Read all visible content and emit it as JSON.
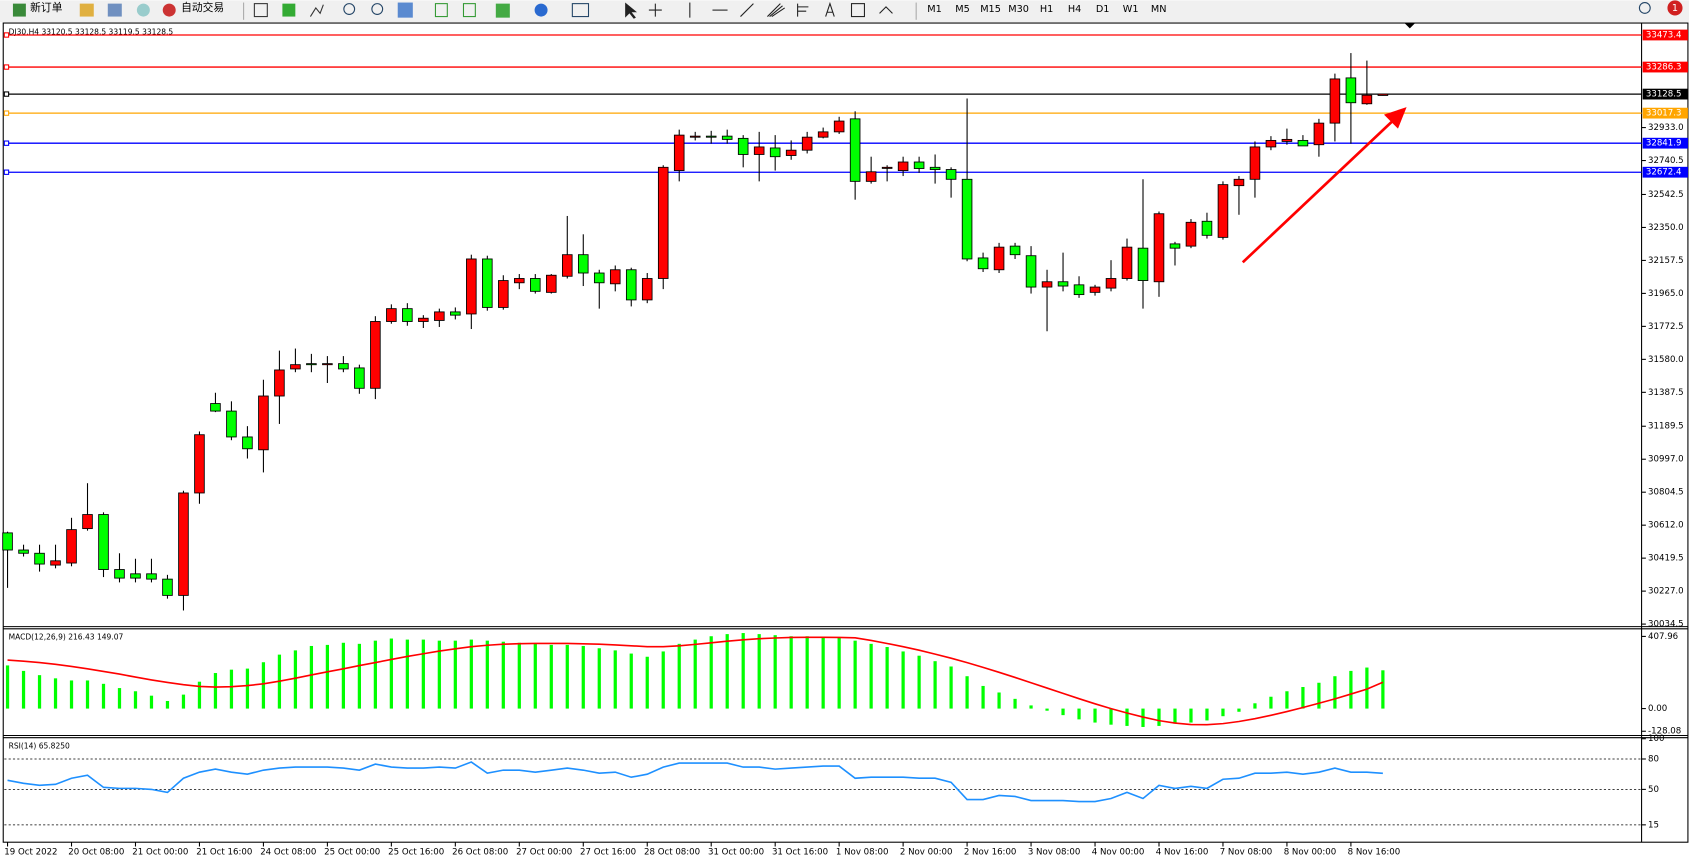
{
  "toolbar": {
    "buttons": [
      "新订单",
      "自动交易"
    ],
    "timeframes": [
      "M1",
      "M5",
      "M15",
      "M30",
      "H1",
      "H4",
      "D1",
      "W1",
      "MN"
    ],
    "badge": "1"
  },
  "chart_data": [
    {
      "type": "candlestick",
      "title": "DJ30,H4  33120.5 33128.5 33119.5 33128.5",
      "categories": [
        "19 Oct 2022",
        null,
        null,
        null,
        "20 Oct 08:00",
        null,
        null,
        null,
        "21 Oct 00:00",
        null,
        null,
        null,
        "21 Oct 16:00",
        null,
        null,
        null,
        "24 Oct 08:00",
        null,
        null,
        null,
        "25 Oct 00:00",
        null,
        null,
        null,
        "25 Oct 16:00",
        null,
        null,
        null,
        "26 Oct 08:00",
        null,
        null,
        null,
        "27 Oct 00:00",
        null,
        null,
        null,
        "27 Oct 16:00",
        null,
        null,
        null,
        "28 Oct 08:00",
        null,
        null,
        null,
        "31 Oct 00:00",
        null,
        null,
        null,
        "31 Oct 16:00",
        null,
        null,
        null,
        "1 Nov 08:00",
        null,
        null,
        null,
        "2 Nov 00:00",
        null,
        null,
        null,
        "2 Nov 16:00",
        null,
        null,
        null,
        "3 Nov 08:00",
        null,
        null,
        null,
        "4 Nov 00:00",
        null,
        null,
        null,
        "4 Nov 16:00",
        null,
        null,
        null,
        "7 Nov 08:00",
        null,
        null,
        null,
        "8 Nov 00:00",
        null,
        null,
        null,
        "8 Nov 16:00",
        null,
        null
      ],
      "open": [
        30567,
        30467,
        30448,
        30379,
        30391,
        30592,
        30674,
        30353,
        30328,
        30328,
        30297,
        30202,
        30800,
        31322,
        31278,
        31127,
        31052,
        31366,
        31524,
        31555,
        31555,
        31555,
        31530,
        31411,
        31801,
        31876,
        31801,
        31807,
        31857,
        31845,
        32166,
        31883,
        32027,
        32052,
        31971,
        32065,
        32191,
        32084,
        32021,
        32103,
        31927,
        32052,
        32682,
        32883,
        32883,
        32883,
        32870,
        32776,
        32814,
        32770,
        32801,
        32877,
        32908,
        32984,
        32619,
        32701,
        32682,
        32732,
        32701,
        32688,
        32631,
        32172,
        32103,
        32241,
        32185,
        32002,
        32033,
        32015,
        31971,
        31996,
        32052,
        32229,
        32033,
        32254,
        32241,
        32386,
        32292,
        32594,
        32631,
        32820,
        32852,
        32858,
        32833,
        32959,
        33223,
        33072,
        33120.5
      ],
      "high": [
        30574,
        30498,
        30498,
        30498,
        30655,
        30857,
        30687,
        30448,
        30416,
        30416,
        30322,
        30813,
        31159,
        31385,
        31335,
        31190,
        31461,
        31631,
        31643,
        31612,
        31599,
        31599,
        31549,
        31832,
        31901,
        31908,
        31838,
        31876,
        31883,
        32191,
        32185,
        32071,
        32078,
        32078,
        32078,
        32417,
        32310,
        32103,
        32128,
        32115,
        32084,
        32713,
        32921,
        32908,
        32914,
        32921,
        32889,
        32908,
        32889,
        32858,
        32908,
        32933,
        32996,
        33028,
        32763,
        32713,
        32763,
        32763,
        32776,
        32701,
        33103,
        32203,
        32260,
        32260,
        32241,
        32103,
        32203,
        32065,
        32015,
        32159,
        32285,
        32631,
        32443,
        32266,
        32399,
        32436,
        32619,
        32650,
        32852,
        32883,
        32927,
        32889,
        32984,
        33248,
        33368,
        33324,
        33128.5
      ],
      "low": [
        30246,
        30429,
        30341,
        30360,
        30372,
        30580,
        30309,
        30278,
        30278,
        30278,
        30183,
        30114,
        30737,
        31272,
        31108,
        31001,
        30920,
        31203,
        31505,
        31505,
        31442,
        31505,
        31379,
        31348,
        31788,
        31776,
        31763,
        31769,
        31813,
        31757,
        31864,
        31870,
        31990,
        31964,
        31964,
        32052,
        32008,
        31876,
        31977,
        31889,
        31908,
        31990,
        32619,
        32858,
        32839,
        32839,
        32701,
        32619,
        32682,
        32745,
        32782,
        32870,
        32896,
        32512,
        32606,
        32619,
        32650,
        32669,
        32606,
        32524,
        32153,
        32090,
        32084,
        32166,
        31964,
        31744,
        31977,
        31939,
        31952,
        31977,
        32040,
        31876,
        31945,
        32128,
        32229,
        32285,
        32279,
        32424,
        32524,
        32801,
        32833,
        32826,
        32763,
        32852,
        32839,
        33066,
        33119.5
      ],
      "close": [
        30467,
        30448,
        30385,
        30404,
        30586,
        30674,
        30353,
        30303,
        30303,
        30297,
        30202,
        30800,
        31140,
        31278,
        31127,
        31058,
        31366,
        31518,
        31549,
        31549,
        31555,
        31524,
        31411,
        31801,
        31876,
        31801,
        31820,
        31857,
        31838,
        32166,
        31883,
        32040,
        32052,
        31977,
        32071,
        32191,
        32084,
        32027,
        32103,
        31927,
        32052,
        32701,
        32889,
        32883,
        32877,
        32864,
        32776,
        32820,
        32763,
        32801,
        32877,
        32908,
        32971,
        32619,
        32675,
        32701,
        32732,
        32694,
        32688,
        32631,
        32166,
        32109,
        32235,
        32191,
        32002,
        32033,
        32008,
        31958,
        32002,
        32052,
        32235,
        32040,
        32430,
        32229,
        32380,
        32304,
        32600,
        32631,
        32820,
        32858,
        32864,
        32826,
        32959,
        33217,
        33078,
        33122,
        33128.5
      ],
      "up_color": "#ff0000",
      "down_color": "#00ff00",
      "levels": [
        {
          "value": 33473.4,
          "color": "#ff0000"
        },
        {
          "value": 33286.3,
          "color": "#ff0000"
        },
        {
          "value": 33128.5,
          "color": "#000000"
        },
        {
          "value": 33017.3,
          "color": "#ffa500"
        },
        {
          "value": 32841.9,
          "color": "#0000ff"
        },
        {
          "value": 32672.4,
          "color": "#0000ff"
        }
      ],
      "ylim": [
        30026,
        33537
      ],
      "yticks": [
        {
          "value": 32933,
          "label": "32933.0"
        },
        32740.5,
        32542.5,
        {
          "value": 32350,
          "label": "32350.0"
        },
        32157.5,
        {
          "value": 31965,
          "label": "31965.0"
        },
        31772.5,
        {
          "value": 31580,
          "label": "31580.0"
        },
        31387.5,
        31189.5,
        {
          "value": 30997,
          "label": "30997.0"
        },
        30804.5,
        {
          "value": 30612,
          "label": "30612.0"
        },
        30419.5,
        {
          "value": 30227,
          "label": "30227.0"
        },
        30034.5
      ]
    },
    {
      "type": "macd",
      "title": "MACD(12,26,9) 216.43 149.07",
      "histogram": {
        "color": "#00ff00",
        "values": [
          244,
          213,
          189,
          171,
          159,
          159,
          140,
          116,
          98,
          73,
          43,
          79,
          152,
          201,
          220,
          226,
          262,
          305,
          329,
          354,
          360,
          372,
          366,
          384,
          396,
          390,
          390,
          384,
          384,
          390,
          384,
          378,
          372,
          366,
          360,
          360,
          354,
          341,
          329,
          311,
          293,
          323,
          366,
          390,
          409,
          421,
          427,
          421,
          415,
          409,
          409,
          402,
          402,
          384,
          366,
          348,
          323,
          299,
          268,
          238,
          183,
          128,
          91,
          55,
          18,
          -12,
          -37,
          -61,
          -79,
          -91,
          -98,
          -104,
          -98,
          -85,
          -79,
          -67,
          -43,
          -18,
          30,
          67,
          98,
          122,
          146,
          183,
          213,
          232,
          216.43
        ]
      },
      "signal": {
        "color": "#ff0000",
        "values": [
          274,
          268,
          260,
          250,
          238,
          225,
          210,
          195,
          178,
          162,
          148,
          135,
          125,
          122,
          124,
          130,
          140,
          155,
          172,
          190,
          208,
          225,
          243,
          260,
          278,
          295,
          310,
          325,
          338,
          350,
          358,
          364,
          367,
          368,
          368,
          368,
          366,
          364,
          360,
          355,
          350,
          350,
          355,
          363,
          372,
          381,
          389,
          395,
          399,
          402,
          403,
          403,
          402,
          400,
          385,
          368,
          350,
          330,
          308,
          285,
          260,
          233,
          205,
          176,
          146,
          116,
          86,
          56,
          27,
          0,
          -25,
          -48,
          -68,
          -82,
          -90,
          -91,
          -85,
          -73,
          -57,
          -38,
          -17,
          6,
          30,
          55,
          82,
          110,
          149.07
        ]
      },
      "ylim": [
        -146,
        445
      ],
      "yticks": [
        407.96,
        {
          "value": 0,
          "label": "0.00"
        },
        -128.08
      ]
    },
    {
      "type": "line",
      "title": "RSI(14) 65.8250",
      "color": "#1e90ff",
      "values": [
        59,
        56,
        54,
        55,
        61,
        64,
        52,
        51,
        51,
        50,
        47,
        61,
        67,
        70,
        67,
        65,
        69,
        71,
        72,
        72,
        72,
        71,
        69,
        75,
        72,
        71,
        71,
        72,
        71,
        77,
        66,
        69,
        69,
        67,
        69,
        71,
        69,
        66,
        67,
        62,
        65,
        72,
        76,
        76,
        76,
        76,
        72,
        72,
        70,
        71,
        72,
        73,
        73,
        61,
        62,
        62,
        62,
        61,
        61,
        57,
        40,
        40,
        44,
        43,
        39,
        39,
        39,
        38,
        38,
        41,
        47,
        41,
        54,
        51,
        53,
        51,
        60,
        61,
        66,
        66,
        67,
        65,
        67,
        71,
        67,
        67,
        65.825
      ],
      "ylim": [
        0,
        100
      ],
      "yticks": [
        100,
        80,
        50,
        15
      ],
      "levels": [
        80,
        50,
        15
      ]
    }
  ]
}
